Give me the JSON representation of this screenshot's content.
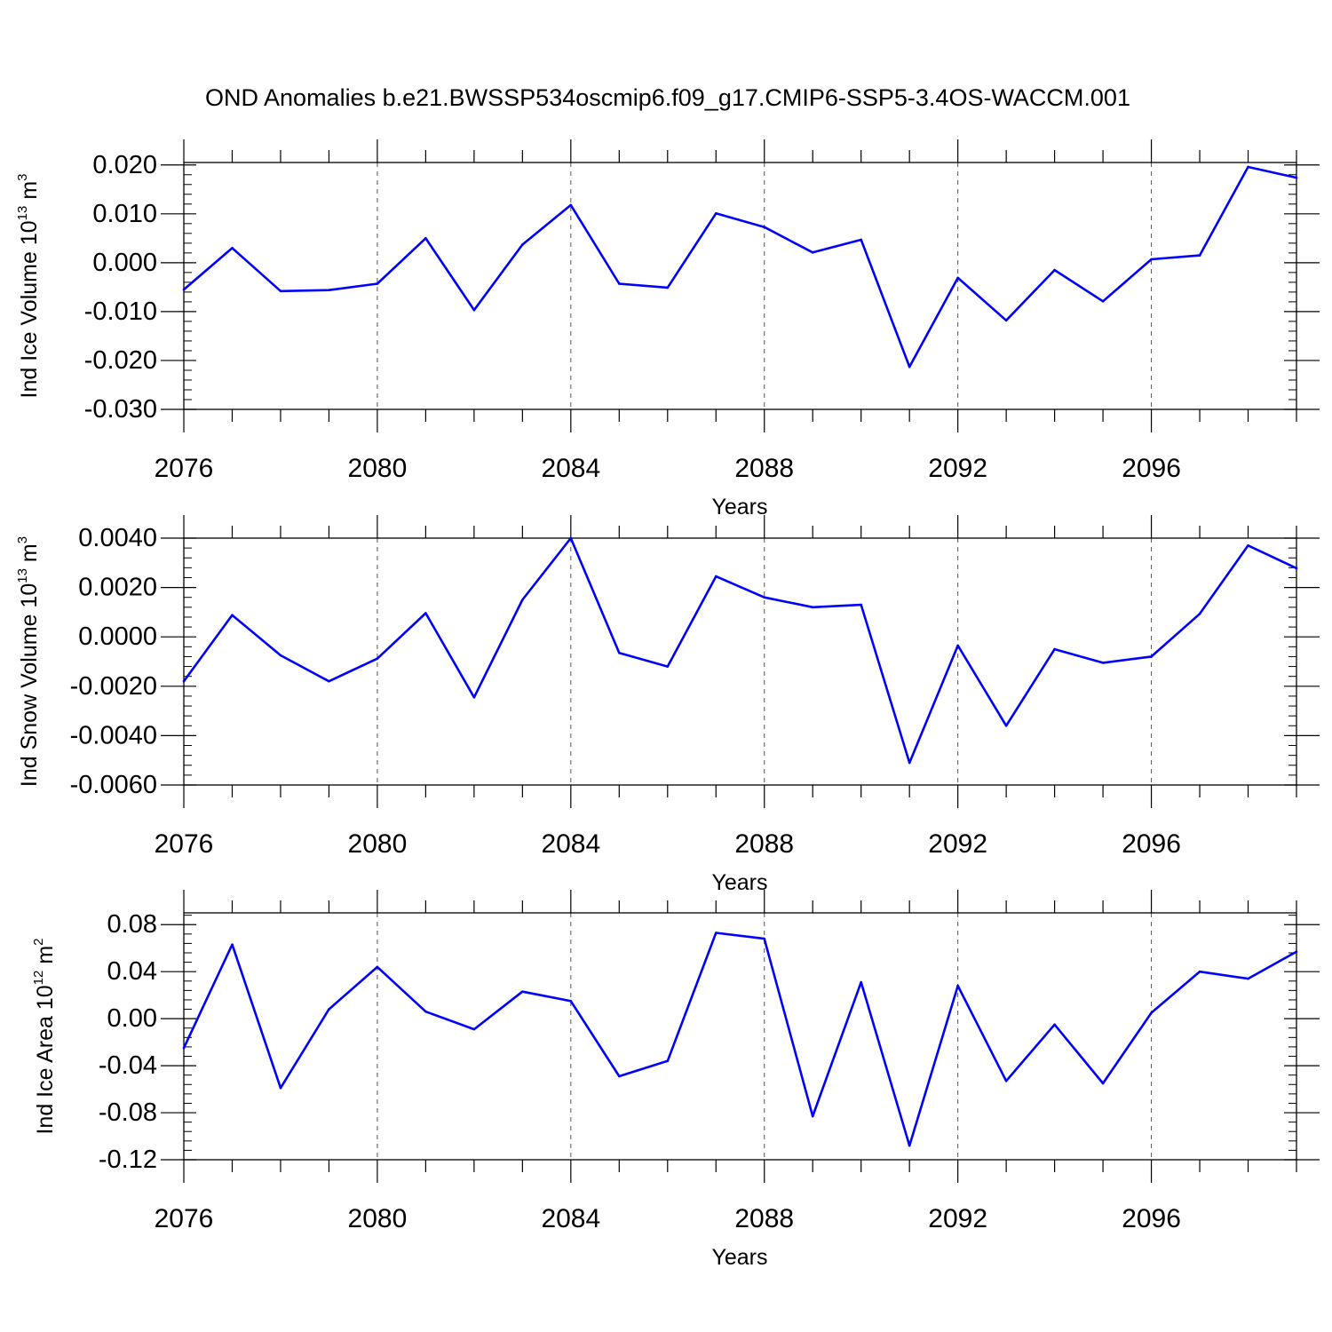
{
  "title": "OND Anomalies b.e21.BWSSP534oscmip6.f09_g17.CMIP6-SSP5-3.4OS-WACCM.001",
  "colors": {
    "line": "#0000ff",
    "axis": "#000000",
    "grid": "#555555"
  },
  "chart_data": [
    {
      "type": "line",
      "ylabel_main": "Ind Ice Volume 10",
      "ylabel_exp": "13",
      "ylabel_unit": "m",
      "ylabel_unit_exp": "3",
      "xlabel": "Years",
      "xlim": [
        2076,
        2099
      ],
      "ylim": [
        -0.03,
        0.0205
      ],
      "xticks": [
        2076,
        2080,
        2084,
        2088,
        2092,
        2096
      ],
      "xtick_labels": [
        "2076",
        "2080",
        "2084",
        "2088",
        "2092",
        "2096"
      ],
      "yticks": [
        0.02,
        0.01,
        0.0,
        -0.01,
        -0.02,
        -0.03
      ],
      "ytick_labels": [
        "0.020",
        "0.010",
        "0.000",
        "-0.010",
        "-0.020",
        "-0.030"
      ],
      "x": [
        2076,
        2077,
        2078,
        2079,
        2080,
        2081,
        2082,
        2083,
        2084,
        2085,
        2086,
        2087,
        2088,
        2089,
        2090,
        2091,
        2092,
        2093,
        2094,
        2095,
        2096,
        2097,
        2098,
        2099
      ],
      "values": [
        -0.0055,
        0.003,
        -0.0058,
        -0.0056,
        -0.0043,
        0.005,
        -0.0097,
        0.0037,
        0.0118,
        -0.0043,
        -0.0051,
        0.0101,
        0.0073,
        0.0021,
        0.0047,
        -0.0213,
        -0.0031,
        -0.0118,
        -0.0015,
        -0.0079,
        0.0007,
        0.0015,
        0.0196,
        0.0174
      ]
    },
    {
      "type": "line",
      "ylabel_main": "Ind Snow Volume 10",
      "ylabel_exp": "13",
      "ylabel_unit": "m",
      "ylabel_unit_exp": "3",
      "xlabel": "Years",
      "xlim": [
        2076,
        2099
      ],
      "ylim": [
        -0.006,
        0.004
      ],
      "xticks": [
        2076,
        2080,
        2084,
        2088,
        2092,
        2096
      ],
      "xtick_labels": [
        "2076",
        "2080",
        "2084",
        "2088",
        "2092",
        "2096"
      ],
      "yticks": [
        0.004,
        0.002,
        0.0,
        -0.002,
        -0.004,
        -0.006
      ],
      "ytick_labels": [
        "0.0040",
        "0.0020",
        "0.0000",
        "-0.0020",
        "-0.0040",
        "-0.0060"
      ],
      "x": [
        2076,
        2077,
        2078,
        2079,
        2080,
        2081,
        2082,
        2083,
        2084,
        2085,
        2086,
        2087,
        2088,
        2089,
        2090,
        2091,
        2092,
        2093,
        2094,
        2095,
        2096,
        2097,
        2098,
        2099
      ],
      "values": [
        -0.0018,
        0.00088,
        -0.00075,
        -0.0018,
        -0.00088,
        0.00096,
        -0.00245,
        0.0015,
        0.004,
        -0.00065,
        -0.0012,
        0.00245,
        0.0016,
        0.0012,
        0.0013,
        -0.0051,
        -0.00035,
        -0.0036,
        -0.0005,
        -0.00105,
        -0.0008,
        0.00093,
        0.0037,
        0.00278
      ]
    },
    {
      "type": "line",
      "ylabel_main": "Ind Ice Area 10",
      "ylabel_exp": "12",
      "ylabel_unit": "m",
      "ylabel_unit_exp": "2",
      "xlabel": "Years",
      "xlim": [
        2076,
        2099
      ],
      "ylim": [
        -0.12,
        0.09
      ],
      "xticks": [
        2076,
        2080,
        2084,
        2088,
        2092,
        2096
      ],
      "xtick_labels": [
        "2076",
        "2080",
        "2084",
        "2088",
        "2092",
        "2096"
      ],
      "yticks": [
        0.08,
        0.04,
        0.0,
        -0.04,
        -0.08,
        -0.12
      ],
      "ytick_labels": [
        "0.08",
        "0.04",
        "0.00",
        "-0.04",
        "-0.08",
        "-0.12"
      ],
      "x": [
        2076,
        2077,
        2078,
        2079,
        2080,
        2081,
        2082,
        2083,
        2084,
        2085,
        2086,
        2087,
        2088,
        2089,
        2090,
        2091,
        2092,
        2093,
        2094,
        2095,
        2096,
        2097,
        2098,
        2099
      ],
      "values": [
        -0.025,
        0.063,
        -0.059,
        0.008,
        0.044,
        0.006,
        -0.009,
        0.023,
        0.015,
        -0.049,
        -0.036,
        0.073,
        0.068,
        -0.083,
        0.031,
        -0.108,
        0.028,
        -0.053,
        -0.005,
        -0.055,
        0.005,
        0.04,
        0.034,
        0.057
      ]
    }
  ]
}
